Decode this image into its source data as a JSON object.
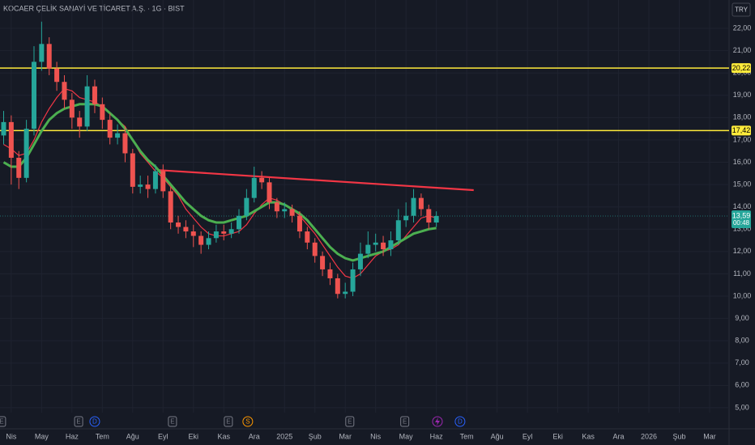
{
  "chart_data": {
    "type": "candlestick",
    "title": "KOCAER ÇELİK SANAYİ VE TİCARET A.Ş. · 1G · BIST",
    "currency": "TRY",
    "xlim": [
      3.63,
      27.64
    ],
    "ylim": [
      4.78,
      23.27
    ],
    "grid": true,
    "up_color": "#26a69a",
    "down_color": "#ef5350",
    "yticks": [
      {
        "value": 5,
        "label": "5,00"
      },
      {
        "value": 6,
        "label": "6,00"
      },
      {
        "value": 7,
        "label": "7,00"
      },
      {
        "value": 8,
        "label": "8,00"
      },
      {
        "value": 9,
        "label": "9,00"
      },
      {
        "value": 10,
        "label": "10,00"
      },
      {
        "value": 11,
        "label": "11,00"
      },
      {
        "value": 12,
        "label": "12,00"
      },
      {
        "value": 13,
        "label": "13,00"
      },
      {
        "value": 14,
        "label": "14,00"
      },
      {
        "value": 15,
        "label": "15,00"
      },
      {
        "value": 16,
        "label": "16,00"
      },
      {
        "value": 17,
        "label": "17,00"
      },
      {
        "value": 18,
        "label": "18,00"
      },
      {
        "value": 19,
        "label": "19,00"
      },
      {
        "value": 20,
        "label": "20,00"
      },
      {
        "value": 21,
        "label": "21,00"
      },
      {
        "value": 22,
        "label": "22,00"
      }
    ],
    "xticks": [
      {
        "value": 4,
        "label": "Nis"
      },
      {
        "value": 5,
        "label": "May"
      },
      {
        "value": 6,
        "label": "Haz"
      },
      {
        "value": 7,
        "label": "Tem"
      },
      {
        "value": 8,
        "label": "Ağu"
      },
      {
        "value": 9,
        "label": "Eyl"
      },
      {
        "value": 10,
        "label": "Eki"
      },
      {
        "value": 11,
        "label": "Kas"
      },
      {
        "value": 12,
        "label": "Ara"
      },
      {
        "value": 13,
        "label": "2025"
      },
      {
        "value": 14,
        "label": "Şub"
      },
      {
        "value": 15,
        "label": "Mar"
      },
      {
        "value": 16,
        "label": "Nis"
      },
      {
        "value": 17,
        "label": "May"
      },
      {
        "value": 18,
        "label": "Haz"
      },
      {
        "value": 19,
        "label": "Tem"
      },
      {
        "value": 20,
        "label": "Ağu"
      },
      {
        "value": 21,
        "label": "Eyl"
      },
      {
        "value": 22,
        "label": "Eki"
      },
      {
        "value": 23,
        "label": "Kas"
      },
      {
        "value": 24,
        "label": "Ara"
      },
      {
        "value": 25,
        "label": "2026"
      },
      {
        "value": 26,
        "label": "Şub"
      },
      {
        "value": 27,
        "label": "Mar"
      }
    ],
    "x": [
      3.75,
      4,
      4.25,
      4.5,
      4.75,
      5,
      5.25,
      5.5,
      5.75,
      6,
      6.25,
      6.5,
      6.75,
      7,
      7.25,
      7.5,
      7.75,
      8,
      8.25,
      8.5,
      8.75,
      9,
      9.25,
      9.5,
      9.75,
      10,
      10.25,
      10.5,
      10.75,
      11,
      11.25,
      11.5,
      11.75,
      12,
      12.25,
      12.5,
      12.75,
      13,
      13.25,
      13.5,
      13.75,
      14,
      14.25,
      14.5,
      14.75,
      15,
      15.25,
      15.5,
      15.75,
      16,
      16.25,
      16.5,
      16.75,
      17,
      17.25,
      17.5,
      17.75,
      18
    ],
    "open": [
      17.2,
      17.8,
      16.2,
      15.3,
      17.5,
      20.5,
      21.3,
      20.2,
      19.6,
      18.8,
      18.0,
      17.6,
      19.4,
      18.6,
      17.9,
      17.1,
      17.3,
      16.4,
      14.9,
      15.0,
      14.8,
      15.6,
      14.7,
      13.3,
      13.1,
      12.9,
      12.7,
      12.3,
      12.6,
      12.9,
      12.8,
      13.0,
      13.6,
      14.4,
      15.3,
      15.1,
      14.2,
      13.8,
      13.9,
      13.6,
      12.9,
      12.4,
      11.8,
      11.2,
      10.8,
      10.1,
      10.2,
      11.2,
      11.9,
      12.3,
      12.4,
      12.1,
      12.5,
      13.4,
      13.6,
      14.4,
      13.9,
      13.3
    ],
    "high": [
      18.3,
      18.1,
      16.5,
      17.9,
      21.2,
      22.3,
      21.6,
      20.5,
      19.9,
      19.1,
      18.3,
      19.9,
      19.7,
      18.9,
      18.2,
      17.7,
      17.6,
      16.6,
      15.4,
      15.4,
      15.9,
      15.9,
      14.9,
      13.6,
      13.4,
      13.2,
      12.9,
      12.9,
      13.2,
      13.2,
      13.3,
      13.9,
      14.8,
      15.8,
      15.6,
      15.3,
      14.4,
      14.2,
      14.1,
      13.8,
      13.1,
      12.6,
      12.0,
      11.5,
      11.0,
      10.6,
      11.5,
      12.4,
      12.9,
      12.8,
      12.7,
      12.9,
      13.9,
      14.2,
      14.8,
      14.6,
      14.1,
      13.8
    ],
    "low": [
      16.8,
      15.0,
      14.8,
      15.1,
      17.2,
      20.1,
      19.9,
      19.2,
      18.4,
      17.5,
      17.1,
      17.4,
      18.2,
      17.5,
      16.8,
      16.8,
      16.0,
      14.6,
      14.6,
      14.4,
      14.6,
      14.4,
      13.0,
      12.8,
      12.6,
      12.2,
      11.9,
      12.1,
      12.4,
      12.5,
      12.6,
      12.8,
      13.4,
      14.2,
      14.8,
      13.9,
      13.5,
      13.5,
      13.3,
      12.6,
      12.1,
      11.5,
      10.9,
      10.5,
      9.9,
      9.9,
      10.0,
      10.9,
      11.7,
      12.0,
      11.8,
      11.8,
      12.3,
      13.1,
      13.3,
      13.6,
      13.0,
      13.1
    ],
    "close": [
      17.8,
      16.2,
      15.3,
      17.5,
      20.5,
      21.3,
      20.2,
      19.6,
      18.8,
      18.0,
      17.6,
      19.4,
      18.6,
      17.9,
      17.1,
      17.3,
      16.4,
      14.9,
      15.0,
      14.8,
      15.6,
      14.7,
      13.3,
      13.1,
      12.9,
      12.7,
      12.3,
      12.6,
      12.9,
      12.8,
      13.0,
      13.6,
      14.4,
      15.3,
      15.1,
      14.2,
      13.8,
      13.9,
      13.6,
      12.9,
      12.4,
      11.8,
      11.2,
      10.8,
      10.1,
      10.2,
      11.2,
      11.9,
      12.3,
      12.4,
      12.1,
      12.5,
      13.4,
      13.6,
      14.4,
      13.9,
      13.3,
      13.59
    ],
    "series": [
      {
        "color": "#f23645",
        "values": [
          16.8,
          16.6,
          16.3,
          16.4,
          17.0,
          17.8,
          18.4,
          18.9,
          19.3,
          19.2,
          18.9,
          18.8,
          18.7,
          18.5,
          18.2,
          17.9,
          17.6,
          17.0,
          16.4,
          16.0,
          15.6,
          15.3,
          14.9,
          14.5,
          13.9,
          13.5,
          13.1,
          12.8,
          12.7,
          12.7,
          12.8,
          12.9,
          13.2,
          13.7,
          14.1,
          14.4,
          14.3,
          14.1,
          13.9,
          13.6,
          13.2,
          12.8,
          12.3,
          11.8,
          11.3,
          10.9,
          10.8,
          11.0,
          11.4,
          11.8,
          12.0,
          12.1,
          12.3,
          12.7,
          13.1,
          13.5,
          13.6,
          13.5
        ]
      },
      {
        "color": "#4caf50",
        "values": [
          16.0,
          15.8,
          15.8,
          16.2,
          16.8,
          17.4,
          17.9,
          18.2,
          18.4,
          18.5,
          18.6,
          18.6,
          18.6,
          18.5,
          18.2,
          17.9,
          17.5,
          17.0,
          16.5,
          16.1,
          15.8,
          15.4,
          15.0,
          14.6,
          14.2,
          13.9,
          13.6,
          13.4,
          13.3,
          13.3,
          13.4,
          13.5,
          13.6,
          13.8,
          14.0,
          14.2,
          14.2,
          14.1,
          13.9,
          13.7,
          13.4,
          13.0,
          12.6,
          12.2,
          11.9,
          11.7,
          11.6,
          11.7,
          11.8,
          11.9,
          12.0,
          12.2,
          12.4,
          12.6,
          12.8,
          12.9,
          13.0,
          13.05
        ]
      }
    ],
    "hlines": [
      {
        "value": 20.22,
        "label": "20,22",
        "color": "#ffeb3b"
      },
      {
        "value": 17.42,
        "label": "17,42",
        "color": "#ffeb3b"
      }
    ],
    "trendline": {
      "x": [
        8.83,
        19.23
      ],
      "y": [
        15.65,
        14.75
      ],
      "color": "#f23645"
    },
    "last_price": {
      "value": 13.59,
      "label": "13,59",
      "countdown": "00:48"
    },
    "events": [
      {
        "x": 3.68,
        "label": "E"
      },
      {
        "x": 6.22,
        "label": "E"
      },
      {
        "x": 6.75,
        "label": "D"
      },
      {
        "x": 9.31,
        "label": "E"
      },
      {
        "x": 11.15,
        "label": "E"
      },
      {
        "x": 11.79,
        "label": "S"
      },
      {
        "x": 15.15,
        "label": "E"
      },
      {
        "x": 16.96,
        "label": "E"
      },
      {
        "x": 18.78,
        "label": "D"
      }
    ]
  }
}
